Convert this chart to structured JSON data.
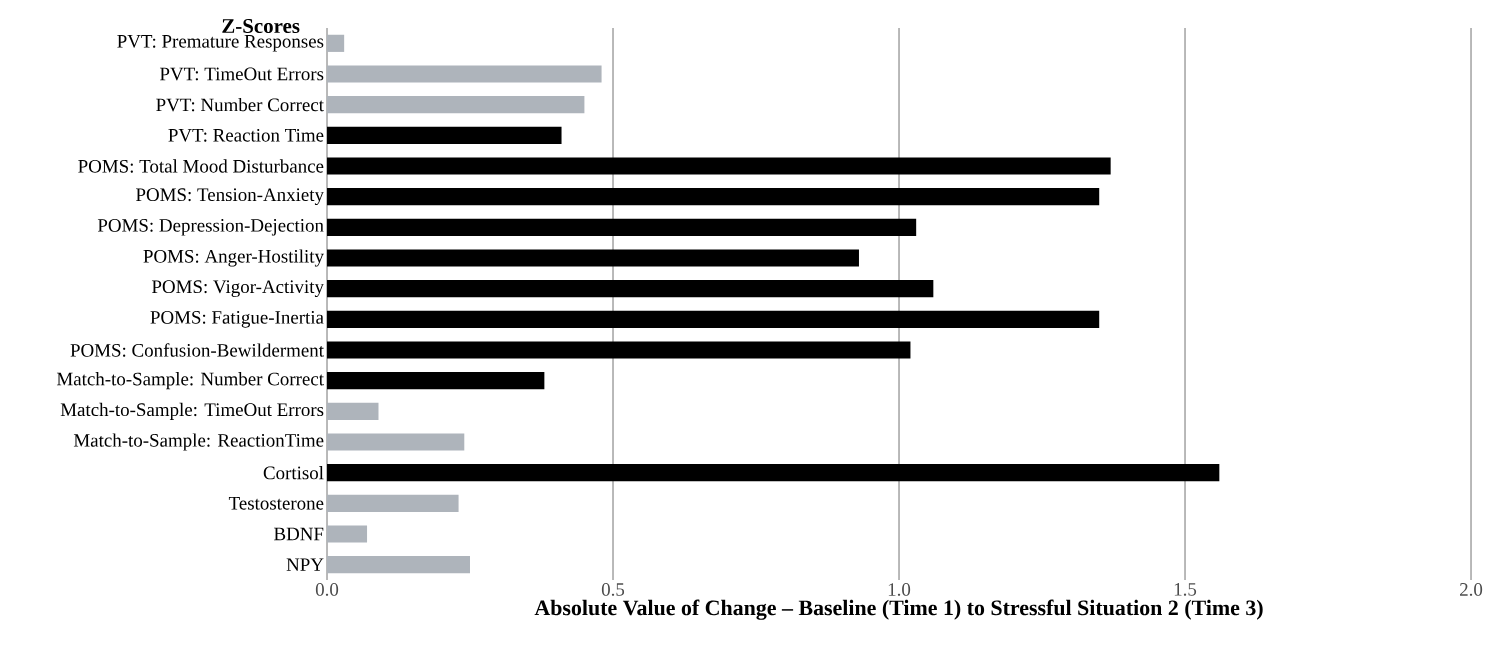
{
  "chart_data": {
    "type": "bar",
    "orientation": "horizontal",
    "title": "Z-Scores",
    "xlabel": "Absolute Value of Change – Baseline (Time 1) to Stressful Situation 2 (Time 3)",
    "categories": [
      "PVT: Premature Responses",
      "PVT: TimeOut Errors",
      "PVT: Number Correct",
      "PVT: Reaction Time",
      "POMS: Total Mood Disturbance",
      "POMS: Tension-Anxiety",
      "POMS: Depression-Dejection",
      "POMS: Anger-Hostility",
      "POMS: Vigor-Activity",
      "POMS: Fatigue-Inertia",
      "POMS: Confusion-Bewilderment",
      "Match-to-Sample: Number Correct",
      "Match-to-Sample: TimeOut Errors",
      "Match-to-Sample: ReactionTime",
      "Cortisol",
      "Testosterone",
      "BDNF",
      "NPY"
    ],
    "values": [
      0.03,
      0.48,
      0.45,
      0.41,
      1.37,
      1.35,
      1.03,
      0.93,
      1.06,
      1.35,
      1.02,
      0.38,
      0.09,
      0.24,
      1.56,
      0.23,
      0.07,
      0.25
    ],
    "colors": [
      "#aeb4bb",
      "#aeb4bb",
      "#aeb4bb",
      "#000000",
      "#000000",
      "#000000",
      "#000000",
      "#000000",
      "#000000",
      "#000000",
      "#000000",
      "#000000",
      "#aeb4bb",
      "#aeb4bb",
      "#000000",
      "#aeb4bb",
      "#aeb4bb",
      "#aeb4bb"
    ],
    "xlim": [
      0,
      2.0
    ],
    "xticks": [
      {
        "value": 0,
        "label": "0.0"
      },
      {
        "value": 0.5,
        "label": "0.5"
      },
      {
        "value": 1.0,
        "label": "1.0"
      },
      {
        "value": 1.5,
        "label": "1.5"
      },
      {
        "value": 2.0,
        "label": "2.0"
      }
    ],
    "grid": "x"
  }
}
